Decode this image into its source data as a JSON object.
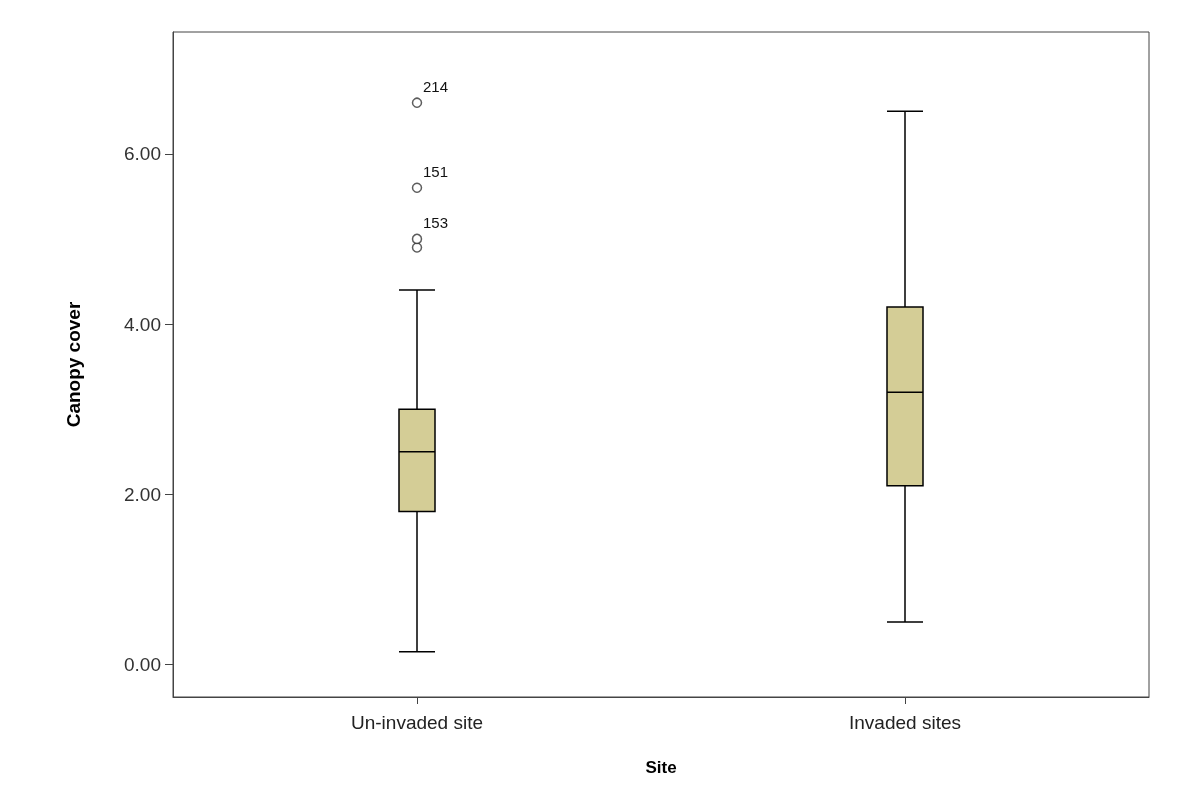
{
  "chart_data": {
    "type": "box",
    "xlabel": "Site",
    "ylabel": "Canopy cover",
    "categories": [
      "Un-invaded site",
      "Invaded sites"
    ],
    "color": "#d4cd96",
    "boxes": [
      {
        "low": 0.15,
        "q1": 1.8,
        "median": 2.5,
        "q3": 3.0,
        "high": 4.4,
        "outliers": [
          4.9,
          5.0,
          5.6,
          6.6
        ]
      },
      {
        "low": 0.5,
        "q1": 2.1,
        "median": 3.2,
        "q3": 4.2,
        "high": 6.5
      }
    ],
    "ylim": [
      -0.38,
      7.43
    ],
    "yticks": [
      {
        "value": 0,
        "label": "0.00"
      },
      {
        "value": 2,
        "label": "2.00"
      },
      {
        "value": 4,
        "label": "4.00"
      },
      {
        "value": 6,
        "label": "6.00"
      }
    ],
    "annotations": [
      "214",
      "151",
      "153"
    ],
    "grid": false
  }
}
